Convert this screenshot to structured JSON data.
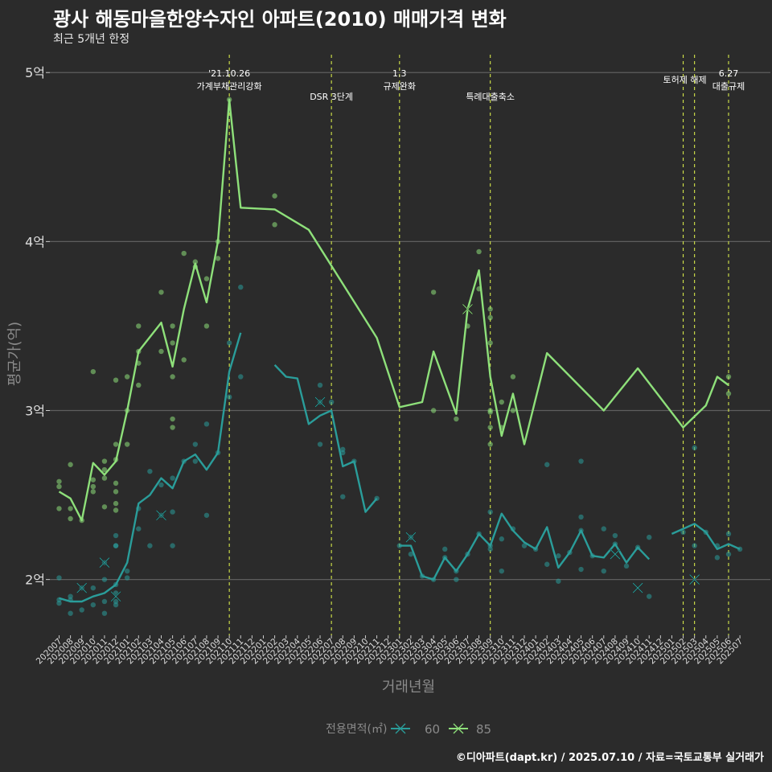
{
  "title": "광사 해동마을한양수자인 아파트(2010) 매매가격 변화",
  "subtitle": "최근 5개년 한정",
  "caption": "©디아파트(dapt.kr) / 2025.07.10 / 자료=국토교통부 실거래가",
  "colors": {
    "background": "#2b2b2b",
    "grid": "#5e5e5e",
    "series_60": "#2a9d9a",
    "series_85": "#8ee07a",
    "event_line": "#d6e84a",
    "text": "#ffffff",
    "axis_title": "#8a8a8a"
  },
  "chart_data": {
    "type": "line",
    "title": "광사 해동마을한양수자인 아파트(2010) 매매가격 변화",
    "subtitle": "최근 5개년 한정",
    "xlabel": "거래년월",
    "ylabel": "평균가(억)",
    "ylim": [
      1.67,
      5.12
    ],
    "yticks": [
      2,
      3,
      4,
      5
    ],
    "ytick_labels": [
      "2억",
      "3억",
      "4억",
      "5억"
    ],
    "grid": true,
    "legend": {
      "title": "전용면적(㎡)",
      "position": "bottom",
      "entries": [
        "60",
        "85"
      ]
    },
    "x": [
      "202007",
      "202008",
      "202009",
      "202010",
      "202011",
      "202012",
      "202101",
      "202102",
      "202103",
      "202104",
      "202105",
      "202106",
      "202107",
      "202108",
      "202109",
      "202110",
      "202111",
      "202112",
      "202201",
      "202202",
      "202203",
      "202204",
      "202205",
      "202206",
      "202207",
      "202208",
      "202209",
      "202210",
      "202211",
      "202212",
      "202301",
      "202302",
      "202303",
      "202304",
      "202305",
      "202306",
      "202307",
      "202308",
      "202309",
      "202310",
      "202311",
      "202312",
      "202401",
      "202402",
      "202403",
      "202404",
      "202405",
      "202406",
      "202407",
      "202408",
      "202409",
      "202410",
      "202411",
      "202412",
      "202501",
      "202502",
      "202503",
      "202504",
      "202505",
      "202506",
      "202507"
    ],
    "events": [
      {
        "x": "202110",
        "label": "'21.10.26\n가계부채관리강화"
      },
      {
        "x": "202207",
        "label": "DSR 3단계"
      },
      {
        "x": "202301",
        "label": "1.3\n규제완화"
      },
      {
        "x": "202309",
        "label": "특례대출축소"
      },
      {
        "x": "202502",
        "label": "토허제 해제"
      },
      {
        "x": "202503",
        "label": ""
      },
      {
        "x": "202506",
        "label": "6.27\n대출규제"
      }
    ],
    "series": [
      {
        "name": "60",
        "mean": [
          [
            0,
            1.89
          ],
          [
            1,
            1.87
          ],
          [
            2,
            1.87
          ],
          [
            3,
            1.9
          ],
          [
            4,
            1.92
          ],
          [
            5,
            1.97
          ],
          [
            6,
            2.1
          ],
          [
            7,
            2.45
          ],
          [
            8,
            2.5
          ],
          [
            9,
            2.6
          ],
          [
            10,
            2.54
          ],
          [
            11,
            2.7
          ],
          [
            12,
            2.74
          ],
          [
            13,
            2.65
          ],
          [
            14,
            2.75
          ],
          [
            15,
            3.23
          ],
          [
            16,
            3.46
          ],
          null,
          [
            19,
            3.27
          ],
          [
            20,
            3.2
          ],
          [
            21,
            3.19
          ],
          [
            22,
            2.92
          ],
          [
            23,
            2.97
          ],
          [
            24,
            3.0
          ],
          [
            25,
            2.67
          ],
          [
            26,
            2.7
          ],
          [
            27,
            2.4
          ],
          [
            28,
            2.48
          ],
          null,
          [
            30,
            2.2
          ],
          [
            31,
            2.2
          ],
          [
            32,
            2.02
          ],
          [
            33,
            2.0
          ],
          [
            34,
            2.13
          ],
          [
            35,
            2.05
          ],
          [
            36,
            2.15
          ],
          [
            37,
            2.27
          ],
          [
            38,
            2.2
          ],
          [
            39,
            2.39
          ],
          [
            40,
            2.29
          ],
          [
            41,
            2.22
          ],
          [
            42,
            2.18
          ],
          [
            43,
            2.31
          ],
          [
            44,
            2.07
          ],
          [
            45,
            2.16
          ],
          [
            46,
            2.29
          ],
          [
            47,
            2.14
          ],
          [
            48,
            2.13
          ],
          [
            49,
            2.21
          ],
          [
            50,
            2.1
          ],
          [
            51,
            2.19
          ],
          [
            52,
            2.12
          ],
          null,
          [
            54,
            2.27
          ],
          [
            55,
            2.3
          ],
          [
            56,
            2.33
          ],
          [
            57,
            2.28
          ],
          [
            58,
            2.18
          ],
          [
            59,
            2.21
          ],
          [
            60,
            2.18
          ]
        ],
        "points": [
          [
            0,
            2.01
          ],
          [
            0,
            1.88
          ],
          [
            0,
            1.86
          ],
          [
            1,
            1.9
          ],
          [
            1,
            1.8
          ],
          [
            1,
            1.88
          ],
          [
            2,
            1.82
          ],
          [
            2,
            1.95
          ],
          [
            3,
            1.85
          ],
          [
            3,
            1.95
          ],
          [
            4,
            1.8
          ],
          [
            4,
            1.87
          ],
          [
            4,
            2.1
          ],
          [
            4,
            2.0
          ],
          [
            5,
            1.85
          ],
          [
            5,
            1.87
          ],
          [
            5,
            1.92
          ],
          [
            5,
            1.97
          ],
          [
            5,
            2.2
          ],
          [
            5,
            2.26
          ],
          [
            5,
            2.2
          ],
          [
            6,
            2.01
          ],
          [
            6,
            2.05
          ],
          [
            7,
            2.3
          ],
          [
            7,
            2.42
          ],
          [
            8,
            2.64
          ],
          [
            8,
            2.2
          ],
          [
            9,
            2.38
          ],
          [
            9,
            2.56
          ],
          [
            10,
            2.4
          ],
          [
            10,
            2.2
          ],
          [
            10,
            2.6
          ],
          [
            11,
            2.7
          ],
          [
            12,
            2.8
          ],
          [
            12,
            2.7
          ],
          [
            13,
            2.92
          ],
          [
            13,
            2.38
          ],
          [
            14,
            2.75
          ],
          [
            15,
            3.08
          ],
          [
            15,
            3.4
          ],
          [
            16,
            3.73
          ],
          [
            16,
            3.2
          ],
          [
            24,
            3.05
          ],
          [
            23,
            3.15
          ],
          [
            23,
            2.8
          ],
          [
            23,
            3.05
          ],
          [
            25,
            2.77
          ],
          [
            25,
            2.75
          ],
          [
            25,
            2.49
          ],
          [
            26,
            2.7
          ],
          [
            28,
            2.48
          ],
          [
            30,
            2.2
          ],
          [
            31,
            2.25
          ],
          [
            31,
            2.15
          ],
          [
            32,
            2.02
          ],
          [
            33,
            2.0
          ],
          [
            34,
            2.18
          ],
          [
            34,
            2.13
          ],
          [
            35,
            2.0
          ],
          [
            35,
            2.05
          ],
          [
            36,
            2.15
          ],
          [
            37,
            2.27
          ],
          [
            38,
            2.2
          ],
          [
            38,
            2.4
          ],
          [
            38,
            2.18
          ],
          [
            39,
            2.24
          ],
          [
            39,
            2.05
          ],
          [
            40,
            2.3
          ],
          [
            41,
            2.2
          ],
          [
            42,
            2.18
          ],
          [
            43,
            2.09
          ],
          [
            43,
            2.68
          ],
          [
            44,
            1.99
          ],
          [
            44,
            2.14
          ],
          [
            45,
            2.16
          ],
          [
            46,
            2.7
          ],
          [
            46,
            2.37
          ],
          [
            46,
            2.06
          ],
          [
            46,
            2.29
          ],
          [
            47,
            2.14
          ],
          [
            48,
            2.05
          ],
          [
            48,
            2.3
          ],
          [
            49,
            2.21
          ],
          [
            49,
            2.26
          ],
          [
            50,
            2.08
          ],
          [
            51,
            2.19
          ],
          [
            52,
            1.9
          ],
          [
            52,
            2.25
          ],
          [
            55,
            2.28
          ],
          [
            56,
            2.78
          ],
          [
            56,
            2.2
          ],
          [
            57,
            2.28
          ],
          [
            58,
            2.13
          ],
          [
            58,
            2.2
          ],
          [
            59,
            2.27
          ],
          [
            59,
            2.15
          ],
          [
            60,
            2.18
          ]
        ],
        "crosses": [
          [
            2,
            1.95
          ],
          [
            4,
            2.1
          ],
          [
            9,
            2.38
          ],
          [
            5,
            1.9
          ],
          [
            23,
            3.05
          ],
          [
            31,
            2.25
          ],
          [
            49,
            2.15
          ],
          [
            51,
            1.95
          ],
          [
            56,
            2.0
          ]
        ]
      },
      {
        "name": "85",
        "mean": [
          [
            0,
            2.52
          ],
          [
            1,
            2.48
          ],
          [
            2,
            2.35
          ],
          [
            3,
            2.69
          ],
          [
            4,
            2.62
          ],
          [
            5,
            2.7
          ],
          [
            6,
            3.0
          ],
          [
            7,
            3.35
          ],
          [
            9,
            3.52
          ],
          [
            10,
            3.26
          ],
          [
            11,
            3.6
          ],
          [
            12,
            3.87
          ],
          [
            13,
            3.64
          ],
          [
            14,
            4.0
          ],
          [
            15,
            4.84
          ],
          [
            16,
            4.2
          ],
          [
            19,
            4.19
          ],
          [
            22,
            4.07
          ],
          [
            28,
            3.43
          ],
          [
            30,
            3.02
          ],
          [
            32,
            3.05
          ],
          [
            33,
            3.35
          ],
          [
            35,
            2.98
          ],
          [
            36,
            3.6
          ],
          [
            37,
            3.83
          ],
          [
            38,
            3.2
          ],
          [
            39,
            2.85
          ],
          [
            40,
            3.1
          ],
          [
            41,
            2.8
          ],
          [
            43,
            3.34
          ],
          [
            48,
            3.0
          ],
          [
            51,
            3.25
          ],
          [
            55,
            2.9
          ],
          [
            57,
            3.03
          ],
          [
            58,
            3.2
          ],
          [
            59,
            3.15
          ]
        ],
        "points": [
          [
            0,
            2.58
          ],
          [
            0,
            2.55
          ],
          [
            0,
            2.42
          ],
          [
            1,
            2.68
          ],
          [
            1,
            2.42
          ],
          [
            1,
            2.36
          ],
          [
            2,
            2.35
          ],
          [
            3,
            3.23
          ],
          [
            3,
            2.52
          ],
          [
            3,
            2.59
          ],
          [
            3,
            2.55
          ],
          [
            4,
            2.7
          ],
          [
            4,
            2.43
          ],
          [
            4,
            2.65
          ],
          [
            4,
            2.6
          ],
          [
            5,
            3.18
          ],
          [
            5,
            2.8
          ],
          [
            5,
            2.71
          ],
          [
            5,
            2.57
          ],
          [
            5,
            2.52
          ],
          [
            5,
            2.45
          ],
          [
            5,
            2.41
          ],
          [
            6,
            3.0
          ],
          [
            6,
            3.2
          ],
          [
            6,
            2.8
          ],
          [
            7,
            3.28
          ],
          [
            7,
            3.35
          ],
          [
            7,
            3.15
          ],
          [
            7,
            3.5
          ],
          [
            9,
            3.35
          ],
          [
            9,
            3.7
          ],
          [
            10,
            3.5
          ],
          [
            10,
            3.2
          ],
          [
            10,
            2.95
          ],
          [
            10,
            2.9
          ],
          [
            10,
            3.4
          ],
          [
            11,
            3.93
          ],
          [
            11,
            3.3
          ],
          [
            12,
            3.88
          ],
          [
            12,
            3.85
          ],
          [
            13,
            3.5
          ],
          [
            13,
            3.78
          ],
          [
            14,
            3.9
          ],
          [
            14,
            4.0
          ],
          [
            15,
            4.84
          ],
          [
            19,
            4.27
          ],
          [
            19,
            4.1
          ],
          [
            33,
            3.7
          ],
          [
            33,
            3.0
          ],
          [
            35,
            2.95
          ],
          [
            36,
            3.5
          ],
          [
            37,
            3.94
          ],
          [
            37,
            3.72
          ],
          [
            38,
            3.6
          ],
          [
            38,
            3.55
          ],
          [
            38,
            3.4
          ],
          [
            38,
            2.9
          ],
          [
            38,
            2.99
          ],
          [
            38,
            2.8
          ],
          [
            38,
            3.0
          ],
          [
            39,
            2.9
          ],
          [
            39,
            3.05
          ],
          [
            40,
            3.2
          ],
          [
            40,
            3.0
          ],
          [
            59,
            3.2
          ],
          [
            59,
            3.1
          ]
        ],
        "crosses": [
          [
            36,
            3.6
          ]
        ]
      }
    ]
  }
}
